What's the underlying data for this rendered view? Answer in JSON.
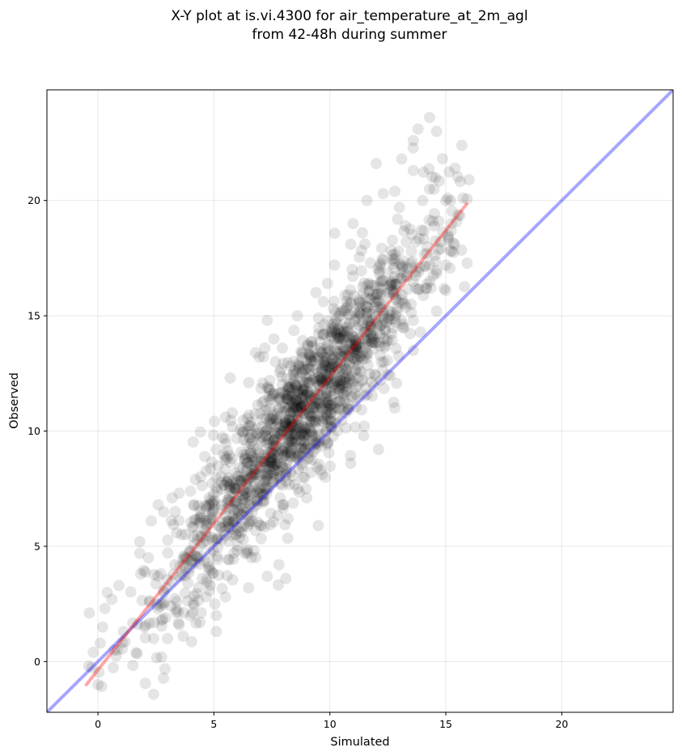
{
  "chart_data": {
    "type": "scatter",
    "title": "X-Y plot at is.vi.4300 for air_temperature_at_2m_agl",
    "subtitle": "from 42-48h during summer",
    "xlabel": "Simulated",
    "ylabel": "Observed",
    "xlim": [
      -2.2,
      24.8
    ],
    "ylim": [
      -2.2,
      24.8
    ],
    "xticks": [
      0,
      5,
      10,
      15,
      20
    ],
    "yticks": [
      0,
      5,
      10,
      15,
      20
    ],
    "grid": true,
    "legend": "none",
    "point_color": "#000000",
    "point_alpha": 0.1,
    "point_count": 1600,
    "lines": [
      {
        "role": "one-to-one",
        "color": "#0000ff",
        "alpha": 0.35,
        "x": [
          -2.2,
          24.8
        ],
        "y": [
          -2.2,
          24.8
        ]
      },
      {
        "role": "regression",
        "color": "#ff0000",
        "alpha": 0.35,
        "x": [
          -0.5,
          15.9
        ],
        "y": [
          -1.0,
          19.85
        ]
      }
    ],
    "outliers": [
      [
        14.3,
        23.6
      ],
      [
        13.8,
        23.1
      ],
      [
        14.6,
        23.0
      ],
      [
        13.6,
        22.6
      ],
      [
        13.1,
        21.8
      ],
      [
        12.0,
        21.6
      ],
      [
        15.4,
        21.4
      ],
      [
        13.6,
        21.3
      ],
      [
        16.0,
        20.9
      ],
      [
        14.3,
        20.5
      ],
      [
        12.8,
        20.4
      ],
      [
        14.0,
        20.0
      ],
      [
        15.0,
        20.0
      ],
      [
        11.6,
        20.0
      ],
      [
        12.3,
        20.3
      ],
      [
        13.0,
        19.7
      ],
      [
        14.7,
        19.1
      ],
      [
        15.1,
        18.5
      ],
      [
        13.3,
        18.2
      ],
      [
        14.2,
        18.0
      ],
      [
        15.0,
        17.2
      ],
      [
        13.7,
        16.2
      ],
      [
        15.0,
        16.1
      ],
      [
        14.6,
        15.2
      ],
      [
        13.6,
        14.8
      ],
      [
        13.6,
        13.5
      ],
      [
        12.6,
        12.4
      ],
      [
        12.8,
        11.0
      ],
      [
        12.1,
        9.2
      ],
      [
        10.9,
        8.6
      ],
      [
        9.8,
        8.0
      ],
      [
        9.0,
        7.1
      ],
      [
        8.0,
        6.8
      ],
      [
        8.2,
        6.2
      ],
      [
        9.5,
        5.9
      ],
      [
        7.8,
        4.2
      ],
      [
        8.1,
        3.6
      ],
      [
        7.3,
        3.7
      ],
      [
        6.5,
        3.2
      ],
      [
        5.5,
        2.8
      ],
      [
        5.1,
        1.3
      ],
      [
        5.1,
        2.0
      ],
      [
        4.4,
        1.7
      ],
      [
        3.0,
        1.0
      ],
      [
        2.4,
        1.0
      ],
      [
        2.0,
        1.5
      ],
      [
        0.7,
        0.5
      ],
      [
        0.2,
        1.5
      ],
      [
        -0.2,
        0.4
      ],
      [
        0.0,
        -1.0
      ],
      [
        -0.4,
        -0.2
      ],
      [
        0.1,
        0.8
      ],
      [
        0.3,
        2.3
      ],
      [
        0.4,
        3.0
      ],
      [
        0.6,
        2.7
      ],
      [
        0.9,
        3.3
      ],
      [
        1.8,
        4.7
      ],
      [
        1.8,
        5.2
      ],
      [
        2.3,
        6.1
      ],
      [
        2.6,
        6.8
      ],
      [
        3.2,
        7.1
      ],
      [
        3.5,
        7.3
      ],
      [
        4.2,
        7.9
      ],
      [
        5.1,
        9.2
      ],
      [
        5.5,
        10.6
      ],
      [
        5.7,
        12.3
      ],
      [
        6.5,
        12.1
      ],
      [
        6.8,
        13.4
      ],
      [
        7.2,
        13.6
      ],
      [
        7.3,
        14.8
      ],
      [
        8.6,
        15.0
      ],
      [
        9.4,
        16.0
      ],
      [
        10.2,
        17.2
      ],
      [
        10.9,
        18.1
      ],
      [
        11.4,
        18.6
      ],
      [
        11.0,
        19.0
      ],
      [
        9.9,
        16.4
      ],
      [
        4.5,
        3.6
      ],
      [
        3.4,
        2.6
      ],
      [
        1.1,
        1.3
      ]
    ]
  }
}
